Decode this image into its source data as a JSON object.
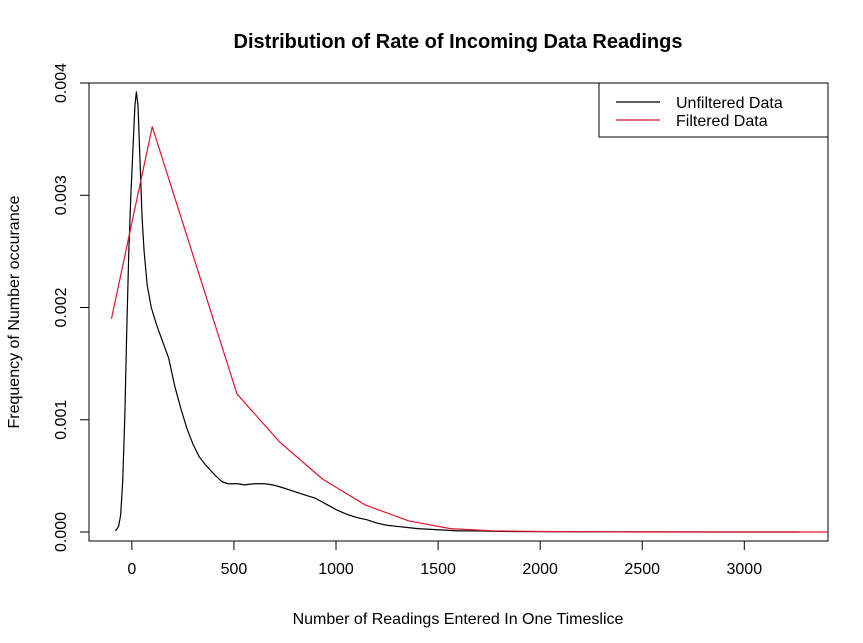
{
  "chart_data": {
    "type": "line",
    "title": "Distribution of Rate of Incoming Data Readings",
    "xlabel": "Number of Readings Entered In One Timeslice",
    "ylabel": "Frequency of Number occurance",
    "xlim": [
      -210,
      3410
    ],
    "ylim": [
      -8e-05,
      0.004
    ],
    "x_ticks": [
      0,
      500,
      1000,
      1500,
      2000,
      2500,
      3000
    ],
    "x_tick_labels": [
      "0",
      "500",
      "1000",
      "1500",
      "2000",
      "2500",
      "3000"
    ],
    "y_ticks": [
      0.0,
      0.001,
      0.002,
      0.003,
      0.004
    ],
    "y_tick_labels": [
      "0.000",
      "0.001",
      "0.002",
      "0.003",
      "0.004"
    ],
    "legend": {
      "position": "top-right",
      "entries": [
        "Unfiltered Data",
        "Filtered Data"
      ]
    },
    "grid": false,
    "series": [
      {
        "name": "Unfiltered Data",
        "color": "#000000",
        "points": [
          [
            -80,
            1e-05
          ],
          [
            -65,
            5e-05
          ],
          [
            -55,
            0.00015
          ],
          [
            -45,
            0.00045
          ],
          [
            -35,
            0.001
          ],
          [
            -25,
            0.0018
          ],
          [
            -15,
            0.0025
          ],
          [
            -5,
            0.003
          ],
          [
            5,
            0.0034
          ],
          [
            15,
            0.0038
          ],
          [
            22,
            0.00392
          ],
          [
            30,
            0.0038
          ],
          [
            40,
            0.0033
          ],
          [
            50,
            0.0028
          ],
          [
            60,
            0.0025
          ],
          [
            75,
            0.0022
          ],
          [
            95,
            0.002
          ],
          [
            120,
            0.00185
          ],
          [
            150,
            0.0017
          ],
          [
            180,
            0.00155
          ],
          [
            210,
            0.0013
          ],
          [
            240,
            0.0011
          ],
          [
            270,
            0.00092
          ],
          [
            300,
            0.00078
          ],
          [
            330,
            0.00067
          ],
          [
            360,
            0.0006
          ],
          [
            400,
            0.00052
          ],
          [
            440,
            0.00045
          ],
          [
            470,
            0.00043
          ],
          [
            520,
            0.00043
          ],
          [
            550,
            0.00042
          ],
          [
            600,
            0.00043
          ],
          [
            650,
            0.00043
          ],
          [
            690,
            0.00042
          ],
          [
            730,
            0.0004
          ],
          [
            780,
            0.00037
          ],
          [
            830,
            0.00034
          ],
          [
            900,
            0.0003
          ],
          [
            960,
            0.00024
          ],
          [
            1000,
            0.0002
          ],
          [
            1050,
            0.00016
          ],
          [
            1100,
            0.00013
          ],
          [
            1150,
            0.00011
          ],
          [
            1200,
            8e-05
          ],
          [
            1250,
            6e-05
          ],
          [
            1300,
            5e-05
          ],
          [
            1350,
            4e-05
          ],
          [
            1400,
            3e-05
          ],
          [
            1500,
            2e-05
          ],
          [
            1600,
            1e-05
          ],
          [
            1700,
            1e-05
          ],
          [
            1800,
            5e-06
          ],
          [
            2000,
            3e-06
          ],
          [
            2200,
            2e-06
          ],
          [
            2500,
            1e-06
          ],
          [
            3000,
            0.0
          ],
          [
            3270,
            0.0
          ]
        ]
      },
      {
        "name": "Filtered Data",
        "color": "#e3132b",
        "points": [
          [
            -100,
            0.0019
          ],
          [
            100,
            0.00361
          ],
          [
            515,
            0.00123
          ],
          [
            725,
            0.0008
          ],
          [
            935,
            0.00047
          ],
          [
            1145,
            0.00024
          ],
          [
            1355,
            0.0001
          ],
          [
            1560,
            3e-05
          ],
          [
            1770,
            1e-05
          ],
          [
            2000,
            5e-06
          ],
          [
            2500,
            0.0
          ],
          [
            3000,
            0.0
          ],
          [
            3410,
            0.0
          ]
        ]
      }
    ]
  }
}
